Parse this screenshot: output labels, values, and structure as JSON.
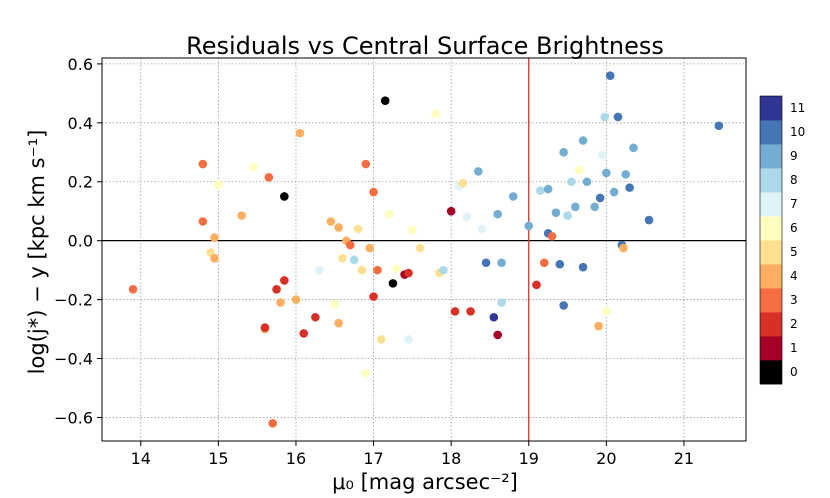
{
  "chart_data": {
    "type": "scatter",
    "title": "Residuals vs Central Surface Brightness",
    "xlabel": "μ₀ [mag arcsec⁻²]",
    "ylabel": "log(j*) − y [kpc km s⁻¹]",
    "xlim": [
      13.5,
      21.8
    ],
    "ylim": [
      -0.68,
      0.62
    ],
    "xticks": [
      14,
      15,
      16,
      17,
      18,
      19,
      20,
      21
    ],
    "yticks": [
      -0.6,
      -0.4,
      -0.2,
      0.0,
      0.2,
      0.4,
      0.6
    ],
    "xtick_labels": [
      "14",
      "15",
      "16",
      "17",
      "18",
      "19",
      "20",
      "21"
    ],
    "ytick_labels": [
      "−0.6",
      "−0.4",
      "−0.2",
      "0.0",
      "0.2",
      "0.4",
      "0.6"
    ],
    "grid": true,
    "reference_lines": {
      "horizontal": {
        "y": 0.0,
        "color": "#000000"
      },
      "vertical": {
        "x": 19.0,
        "color": "#e0302a"
      }
    },
    "colorbar": {
      "ticks": [
        "0",
        "1",
        "2",
        "3",
        "4",
        "5",
        "6",
        "7",
        "8",
        "9",
        "10",
        "11"
      ],
      "colors": [
        "#000000",
        "#a50026",
        "#d73027",
        "#f46d43",
        "#fdae61",
        "#fee090",
        "#ffffbf",
        "#e0f3f8",
        "#abd9e9",
        "#74add1",
        "#4575b4",
        "#313695"
      ]
    },
    "points": [
      {
        "x": 13.9,
        "y": -0.165,
        "c": 3
      },
      {
        "x": 14.8,
        "y": 0.26,
        "c": 3
      },
      {
        "x": 14.8,
        "y": 0.065,
        "c": 3
      },
      {
        "x": 14.9,
        "y": -0.04,
        "c": 5
      },
      {
        "x": 14.95,
        "y": -0.06,
        "c": 4
      },
      {
        "x": 14.95,
        "y": 0.01,
        "c": 4
      },
      {
        "x": 15.0,
        "y": 0.19,
        "c": 6
      },
      {
        "x": 15.3,
        "y": 0.085,
        "c": 4
      },
      {
        "x": 15.45,
        "y": 0.25,
        "c": 6
      },
      {
        "x": 15.6,
        "y": -0.3,
        "c": 4
      },
      {
        "x": 15.6,
        "y": -0.295,
        "c": 2
      },
      {
        "x": 15.65,
        "y": 0.215,
        "c": 3
      },
      {
        "x": 15.7,
        "y": -0.62,
        "c": 3
      },
      {
        "x": 15.75,
        "y": -0.165,
        "c": 2
      },
      {
        "x": 15.8,
        "y": -0.21,
        "c": 4
      },
      {
        "x": 15.85,
        "y": -0.135,
        "c": 2
      },
      {
        "x": 15.85,
        "y": 0.15,
        "c": 0
      },
      {
        "x": 16.0,
        "y": -0.2,
        "c": 4
      },
      {
        "x": 16.05,
        "y": 0.365,
        "c": 4
      },
      {
        "x": 16.1,
        "y": -0.315,
        "c": 2
      },
      {
        "x": 16.25,
        "y": -0.26,
        "c": 2
      },
      {
        "x": 16.3,
        "y": -0.1,
        "c": 7
      },
      {
        "x": 16.45,
        "y": 0.065,
        "c": 4
      },
      {
        "x": 16.5,
        "y": -0.215,
        "c": 6
      },
      {
        "x": 16.55,
        "y": -0.28,
        "c": 4
      },
      {
        "x": 16.55,
        "y": 0.045,
        "c": 4
      },
      {
        "x": 16.6,
        "y": -0.06,
        "c": 5
      },
      {
        "x": 16.65,
        "y": 0.0,
        "c": 4
      },
      {
        "x": 16.7,
        "y": -0.015,
        "c": 3
      },
      {
        "x": 16.75,
        "y": -0.065,
        "c": 8
      },
      {
        "x": 16.8,
        "y": 0.04,
        "c": 5
      },
      {
        "x": 16.85,
        "y": -0.1,
        "c": 5
      },
      {
        "x": 16.9,
        "y": -0.45,
        "c": 6
      },
      {
        "x": 16.9,
        "y": 0.26,
        "c": 3
      },
      {
        "x": 16.95,
        "y": -0.025,
        "c": 4
      },
      {
        "x": 17.0,
        "y": 0.165,
        "c": 3
      },
      {
        "x": 17.0,
        "y": -0.19,
        "c": 2
      },
      {
        "x": 17.05,
        "y": -0.1,
        "c": 3
      },
      {
        "x": 17.1,
        "y": -0.335,
        "c": 5
      },
      {
        "x": 17.15,
        "y": 0.475,
        "c": 0
      },
      {
        "x": 17.2,
        "y": 0.09,
        "c": 6
      },
      {
        "x": 17.25,
        "y": -0.145,
        "c": 0
      },
      {
        "x": 17.3,
        "y": -0.095,
        "c": 6
      },
      {
        "x": 17.4,
        "y": -0.115,
        "c": 1
      },
      {
        "x": 17.45,
        "y": -0.11,
        "c": 2
      },
      {
        "x": 17.45,
        "y": -0.335,
        "c": 7
      },
      {
        "x": 17.5,
        "y": 0.035,
        "c": 6
      },
      {
        "x": 17.6,
        "y": -0.025,
        "c": 5
      },
      {
        "x": 17.8,
        "y": 0.43,
        "c": 6
      },
      {
        "x": 17.85,
        "y": -0.11,
        "c": 5
      },
      {
        "x": 17.9,
        "y": -0.1,
        "c": 8
      },
      {
        "x": 18.0,
        "y": 0.1,
        "c": 1
      },
      {
        "x": 18.05,
        "y": -0.24,
        "c": 2
      },
      {
        "x": 18.1,
        "y": 0.185,
        "c": 7
      },
      {
        "x": 18.15,
        "y": 0.195,
        "c": 5
      },
      {
        "x": 18.2,
        "y": 0.08,
        "c": 7
      },
      {
        "x": 18.25,
        "y": -0.24,
        "c": 2
      },
      {
        "x": 18.35,
        "y": 0.235,
        "c": 9
      },
      {
        "x": 18.4,
        "y": 0.04,
        "c": 7
      },
      {
        "x": 18.45,
        "y": -0.075,
        "c": 10
      },
      {
        "x": 18.55,
        "y": -0.26,
        "c": 11
      },
      {
        "x": 18.6,
        "y": 0.09,
        "c": 9
      },
      {
        "x": 18.6,
        "y": -0.32,
        "c": 1
      },
      {
        "x": 18.65,
        "y": -0.21,
        "c": 8
      },
      {
        "x": 18.65,
        "y": -0.075,
        "c": 9
      },
      {
        "x": 18.8,
        "y": 0.15,
        "c": 9
      },
      {
        "x": 19.0,
        "y": 0.05,
        "c": 9
      },
      {
        "x": 19.1,
        "y": -0.15,
        "c": 2
      },
      {
        "x": 19.15,
        "y": 0.17,
        "c": 8
      },
      {
        "x": 19.2,
        "y": -0.075,
        "c": 3
      },
      {
        "x": 19.25,
        "y": 0.175,
        "c": 9
      },
      {
        "x": 19.25,
        "y": 0.025,
        "c": 10
      },
      {
        "x": 19.3,
        "y": 0.015,
        "c": 3
      },
      {
        "x": 19.35,
        "y": 0.095,
        "c": 9
      },
      {
        "x": 19.4,
        "y": -0.08,
        "c": 10
      },
      {
        "x": 19.45,
        "y": 0.3,
        "c": 9
      },
      {
        "x": 19.45,
        "y": -0.22,
        "c": 10
      },
      {
        "x": 19.5,
        "y": 0.085,
        "c": 8
      },
      {
        "x": 19.55,
        "y": 0.2,
        "c": 8
      },
      {
        "x": 19.6,
        "y": 0.115,
        "c": 9
      },
      {
        "x": 19.65,
        "y": 0.24,
        "c": 6
      },
      {
        "x": 19.7,
        "y": 0.34,
        "c": 9
      },
      {
        "x": 19.7,
        "y": -0.09,
        "c": 10
      },
      {
        "x": 19.75,
        "y": 0.2,
        "c": 9
      },
      {
        "x": 19.85,
        "y": 0.115,
        "c": 9
      },
      {
        "x": 19.9,
        "y": -0.29,
        "c": 4
      },
      {
        "x": 19.92,
        "y": 0.145,
        "c": 10
      },
      {
        "x": 19.95,
        "y": 0.29,
        "c": 7
      },
      {
        "x": 19.98,
        "y": 0.42,
        "c": 8
      },
      {
        "x": 20.0,
        "y": 0.23,
        "c": 9
      },
      {
        "x": 20.0,
        "y": -0.24,
        "c": 6
      },
      {
        "x": 20.05,
        "y": 0.56,
        "c": 10
      },
      {
        "x": 20.1,
        "y": 0.165,
        "c": 9
      },
      {
        "x": 20.15,
        "y": 0.42,
        "c": 10
      },
      {
        "x": 20.2,
        "y": -0.015,
        "c": 10
      },
      {
        "x": 20.22,
        "y": -0.025,
        "c": 4
      },
      {
        "x": 20.25,
        "y": 0.225,
        "c": 9
      },
      {
        "x": 20.3,
        "y": 0.18,
        "c": 10
      },
      {
        "x": 20.35,
        "y": 0.315,
        "c": 9
      },
      {
        "x": 20.55,
        "y": 0.07,
        "c": 10
      },
      {
        "x": 21.45,
        "y": 0.39,
        "c": 10
      }
    ]
  }
}
